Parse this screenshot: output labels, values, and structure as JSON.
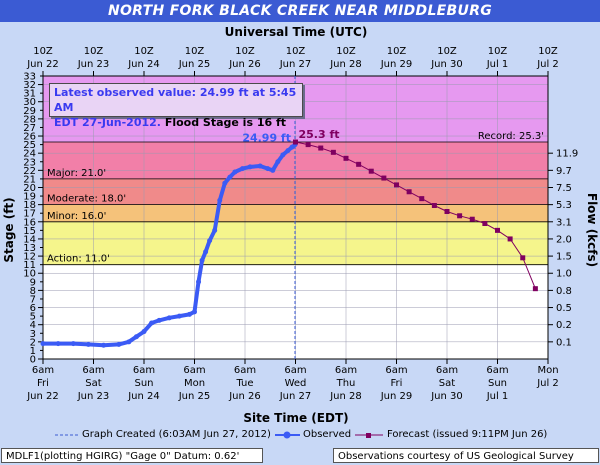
{
  "title": "NORTH FORK BLACK CREEK NEAR MIDDLEBURG",
  "top_axis_title": "Universal Time (UTC)",
  "bottom_axis_title": "Site Time (EDT)",
  "left_axis_title": "Stage (ft)",
  "right_axis_title": "Flow (kcfs)",
  "info": {
    "line1": "Latest observed value: 24.99 ft at 5:45 AM",
    "line2_date": "EDT 27-Jun-2012.",
    "line2_flood": "Flood Stage is 16 ft"
  },
  "legend": {
    "graph_created": "Graph Created (6:03AM Jun 27, 2012)",
    "observed": "Observed",
    "forecast": "Forecast (issued 9:11PM Jun 26)"
  },
  "footer": {
    "left": "MDLF1(plotting HGIRG) \"Gage 0\" Datum: 0.62'",
    "right": "Observations courtesy of US Geological Survey"
  },
  "colors": {
    "record_band": "#e699f0",
    "major_band": "#f27fa8",
    "moderate_band": "#f08a8a",
    "minor_band": "#f5c27a",
    "action_band": "#f5f58c",
    "normal_band": "#ffffff",
    "observed": "#3b5bf5",
    "forecast": "#800060",
    "title_bar": "#3b5bd3"
  },
  "chart_data": {
    "type": "line",
    "x_unit": "days (0 = 6am Jun 22, EDT)",
    "xlim": [
      0,
      10
    ],
    "ylim": [
      0,
      33
    ],
    "y_ticks": [
      0,
      2,
      4,
      6,
      8,
      10,
      12,
      14,
      16,
      18,
      20,
      22,
      24,
      26,
      28,
      30,
      32
    ],
    "y_minor_ticks": [
      33,
      31,
      29,
      27,
      25,
      23,
      21,
      19,
      17,
      15,
      13,
      11,
      9,
      7,
      5,
      3,
      1
    ],
    "bottom_ticks": [
      {
        "x": 0,
        "time": "6am",
        "day": "Fri",
        "date": "Jun 22"
      },
      {
        "x": 1,
        "time": "6am",
        "day": "Sat",
        "date": "Jun 23"
      },
      {
        "x": 2,
        "time": "6am",
        "day": "Sun",
        "date": "Jun 24"
      },
      {
        "x": 3,
        "time": "6am",
        "day": "Mon",
        "date": "Jun 25"
      },
      {
        "x": 4,
        "time": "6am",
        "day": "Tue",
        "date": "Jun 26"
      },
      {
        "x": 5,
        "time": "6am",
        "day": "Wed",
        "date": "Jun 27"
      },
      {
        "x": 6,
        "time": "6am",
        "day": "Thu",
        "date": "Jun 28"
      },
      {
        "x": 7,
        "time": "6am",
        "day": "Fri",
        "date": "Jun 29"
      },
      {
        "x": 8,
        "time": "6am",
        "day": "Sat",
        "date": "Jun 30"
      },
      {
        "x": 9,
        "time": "6am",
        "day": "Sun",
        "date": "Jul 1"
      },
      {
        "x": 10,
        "time": "Mon",
        "day": "Jul 2",
        "date": ""
      }
    ],
    "top_ticks": [
      {
        "x": 0,
        "time": "10Z",
        "date": "Jun 22"
      },
      {
        "x": 1,
        "time": "10Z",
        "date": "Jun 23"
      },
      {
        "x": 2,
        "time": "10Z",
        "date": "Jun 24"
      },
      {
        "x": 3,
        "time": "10Z",
        "date": "Jun 25"
      },
      {
        "x": 4,
        "time": "10Z",
        "date": "Jun 26"
      },
      {
        "x": 5,
        "time": "10Z",
        "date": "Jun 27"
      },
      {
        "x": 6,
        "time": "10Z",
        "date": "Jun 28"
      },
      {
        "x": 7,
        "time": "10Z",
        "date": "Jun 29"
      },
      {
        "x": 8,
        "time": "10Z",
        "date": "Jun 30"
      },
      {
        "x": 9,
        "time": "10Z",
        "date": "Jul 1"
      },
      {
        "x": 10,
        "time": "10Z",
        "date": "Jul 2"
      }
    ],
    "flow_ticks": [
      {
        "stage": 24,
        "label": "11.9"
      },
      {
        "stage": 22,
        "label": "9.7"
      },
      {
        "stage": 20,
        "label": "7.5"
      },
      {
        "stage": 18,
        "label": "5.3"
      },
      {
        "stage": 16,
        "label": "3.1"
      },
      {
        "stage": 14,
        "label": "2.0"
      },
      {
        "stage": 12,
        "label": "1.5"
      },
      {
        "stage": 10,
        "label": "1.0"
      },
      {
        "stage": 8,
        "label": "0.8"
      },
      {
        "stage": 6,
        "label": "0.5"
      },
      {
        "stage": 4,
        "label": "0.2"
      },
      {
        "stage": 2,
        "label": "0.1"
      }
    ],
    "bands": [
      {
        "name": "record",
        "from": 25.3,
        "to": 33,
        "label": "Record: 25.3'"
      },
      {
        "name": "major",
        "from": 21.0,
        "to": 25.3,
        "label": "Major: 21.0'"
      },
      {
        "name": "moderate",
        "from": 18.0,
        "to": 21.0,
        "label": "Moderate: 18.0'"
      },
      {
        "name": "minor",
        "from": 16.0,
        "to": 18.0,
        "label": "Minor: 16.0'"
      },
      {
        "name": "action",
        "from": 11.0,
        "to": 16.0,
        "label": "Action: 11.0'"
      }
    ],
    "observed": {
      "name": "Observed",
      "x": [
        0.0,
        0.3,
        0.6,
        0.9,
        1.2,
        1.5,
        1.7,
        1.85,
        2.0,
        2.15,
        2.3,
        2.5,
        2.7,
        2.9,
        3.0,
        3.08,
        3.15,
        3.22,
        3.3,
        3.4,
        3.5,
        3.6,
        3.7,
        3.8,
        3.95,
        4.1,
        4.3,
        4.45,
        4.55,
        4.65,
        4.75,
        4.85,
        4.93,
        4.99
      ],
      "y": [
        1.8,
        1.8,
        1.8,
        1.7,
        1.6,
        1.7,
        2.0,
        2.6,
        3.2,
        4.2,
        4.5,
        4.8,
        5.0,
        5.2,
        5.5,
        9.0,
        11.5,
        12.5,
        13.8,
        15.0,
        18.5,
        20.5,
        21.2,
        21.8,
        22.2,
        22.4,
        22.5,
        22.2,
        22.0,
        23.0,
        23.8,
        24.3,
        24.7,
        24.99
      ]
    },
    "observed_label": "24.99 ft",
    "forecast": {
      "name": "Forecast",
      "x": [
        5.0,
        5.25,
        5.5,
        5.75,
        6.0,
        6.25,
        6.5,
        6.75,
        7.0,
        7.25,
        7.5,
        7.75,
        8.0,
        8.25,
        8.5,
        8.75,
        9.0,
        9.25,
        9.5,
        9.75
      ],
      "y": [
        25.3,
        25.0,
        24.6,
        24.1,
        23.4,
        22.7,
        21.9,
        21.1,
        20.3,
        19.5,
        18.7,
        17.9,
        17.2,
        16.7,
        16.3,
        15.8,
        15.0,
        14.0,
        11.8,
        8.2
      ]
    },
    "forecast_peak_label": "25.3 ft"
  }
}
